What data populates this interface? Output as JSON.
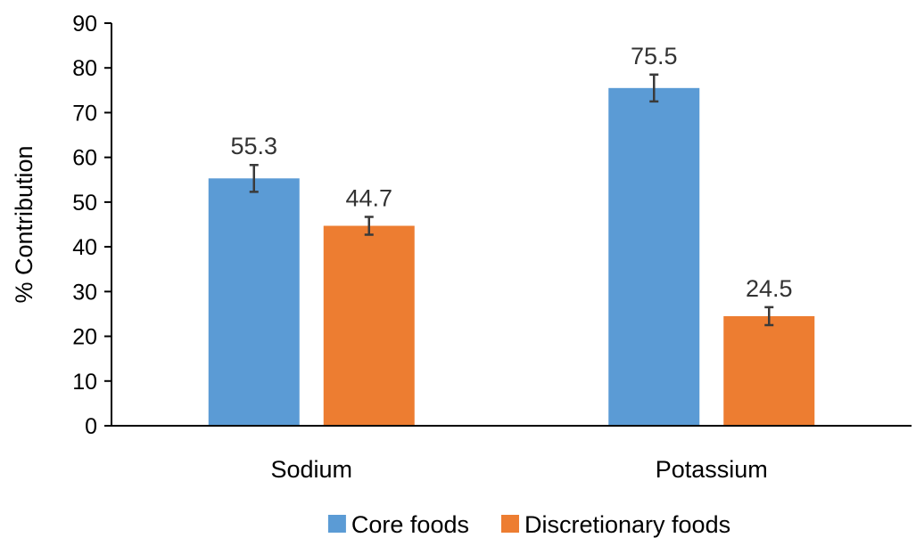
{
  "chart_data": {
    "type": "bar",
    "categories": [
      "Sodium",
      "Potassium"
    ],
    "series": [
      {
        "name": "Core foods",
        "color": "#5B9BD5",
        "values": [
          55.3,
          75.5
        ],
        "error": [
          3.0,
          3.0
        ],
        "labels": [
          "55.3",
          "75.5"
        ]
      },
      {
        "name": "Discretionary foods",
        "color": "#ED7D31",
        "values": [
          44.7,
          24.5
        ],
        "error": [
          2.0,
          2.0
        ],
        "labels": [
          "44.7",
          "24.5"
        ]
      }
    ],
    "title": "",
    "xlabel": "",
    "ylabel": "% Contribution",
    "ylim": [
      0,
      90
    ],
    "yticks": [
      "0",
      "10",
      "20",
      "30",
      "40",
      "50",
      "60",
      "70",
      "80",
      "90"
    ],
    "grid": false,
    "legend_position": "bottom"
  }
}
